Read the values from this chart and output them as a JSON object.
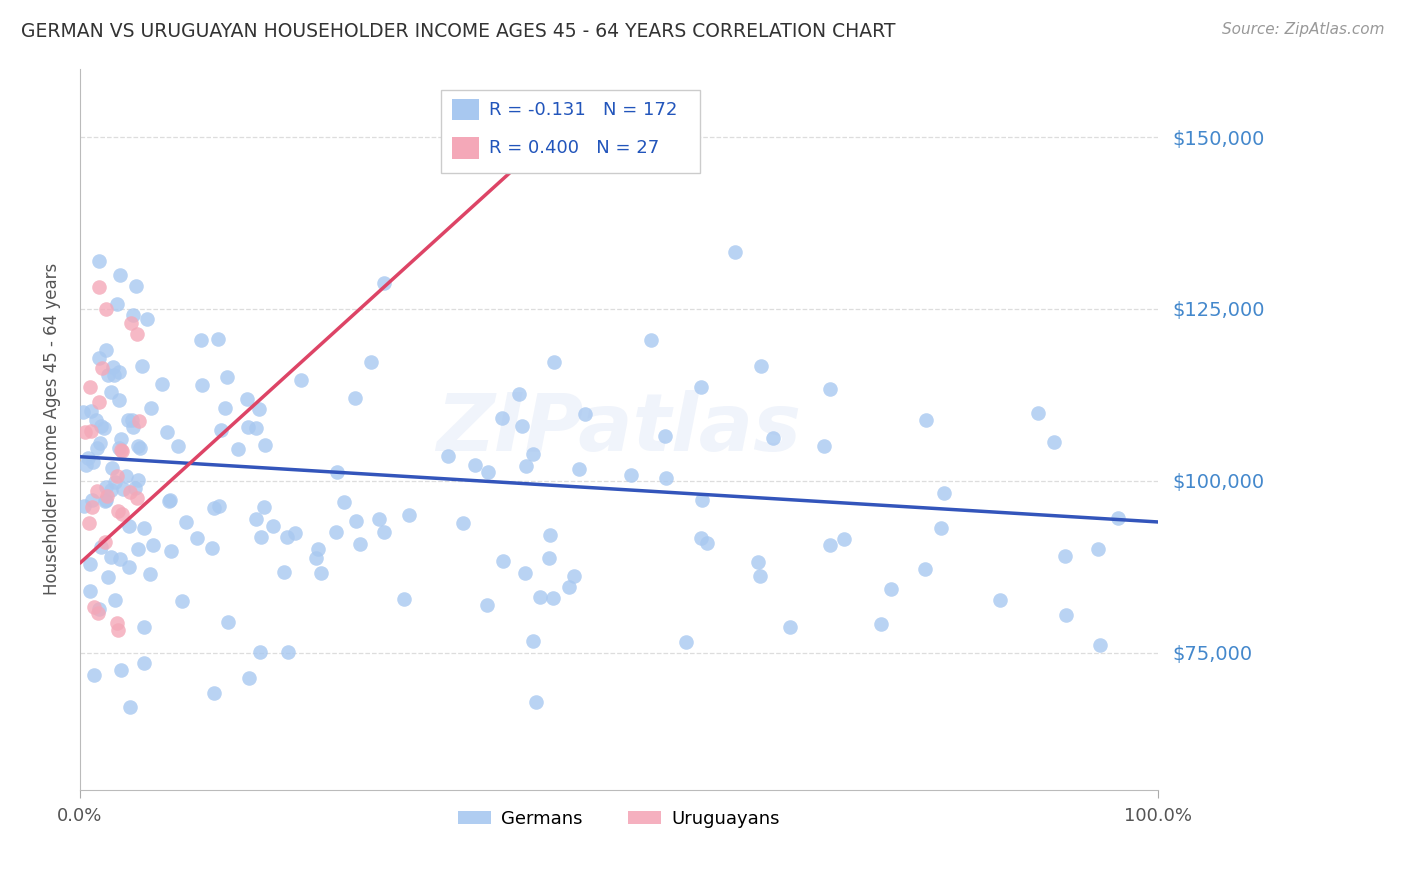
{
  "title": "GERMAN VS URUGUAYAN HOUSEHOLDER INCOME AGES 45 - 64 YEARS CORRELATION CHART",
  "source": "Source: ZipAtlas.com",
  "ylabel": "Householder Income Ages 45 - 64 years",
  "xlim": [
    0.0,
    1.0
  ],
  "ylim": [
    55000,
    160000
  ],
  "yticks": [
    75000,
    100000,
    125000,
    150000
  ],
  "ytick_labels": [
    "$75,000",
    "$100,000",
    "$125,000",
    "$150,000"
  ],
  "xticks": [
    0.0,
    1.0
  ],
  "xtick_labels": [
    "0.0%",
    "100.0%"
  ],
  "german_color": "#a8c8f0",
  "uruguayan_color": "#f4a8b8",
  "trendline_german_color": "#3355bb",
  "trendline_uruguayan_color": "#dd4466",
  "watermark": "ZIPatlas",
  "legend_german_R": "-0.131",
  "legend_german_N": "172",
  "legend_uruguayan_R": "0.400",
  "legend_uruguayan_N": "27",
  "title_color": "#333333",
  "source_color": "#999999",
  "ylabel_color": "#555555",
  "axis_label_color": "#555555",
  "right_tick_color": "#4488cc",
  "grid_color": "#dddddd",
  "legend_box_color": "#cccccc"
}
